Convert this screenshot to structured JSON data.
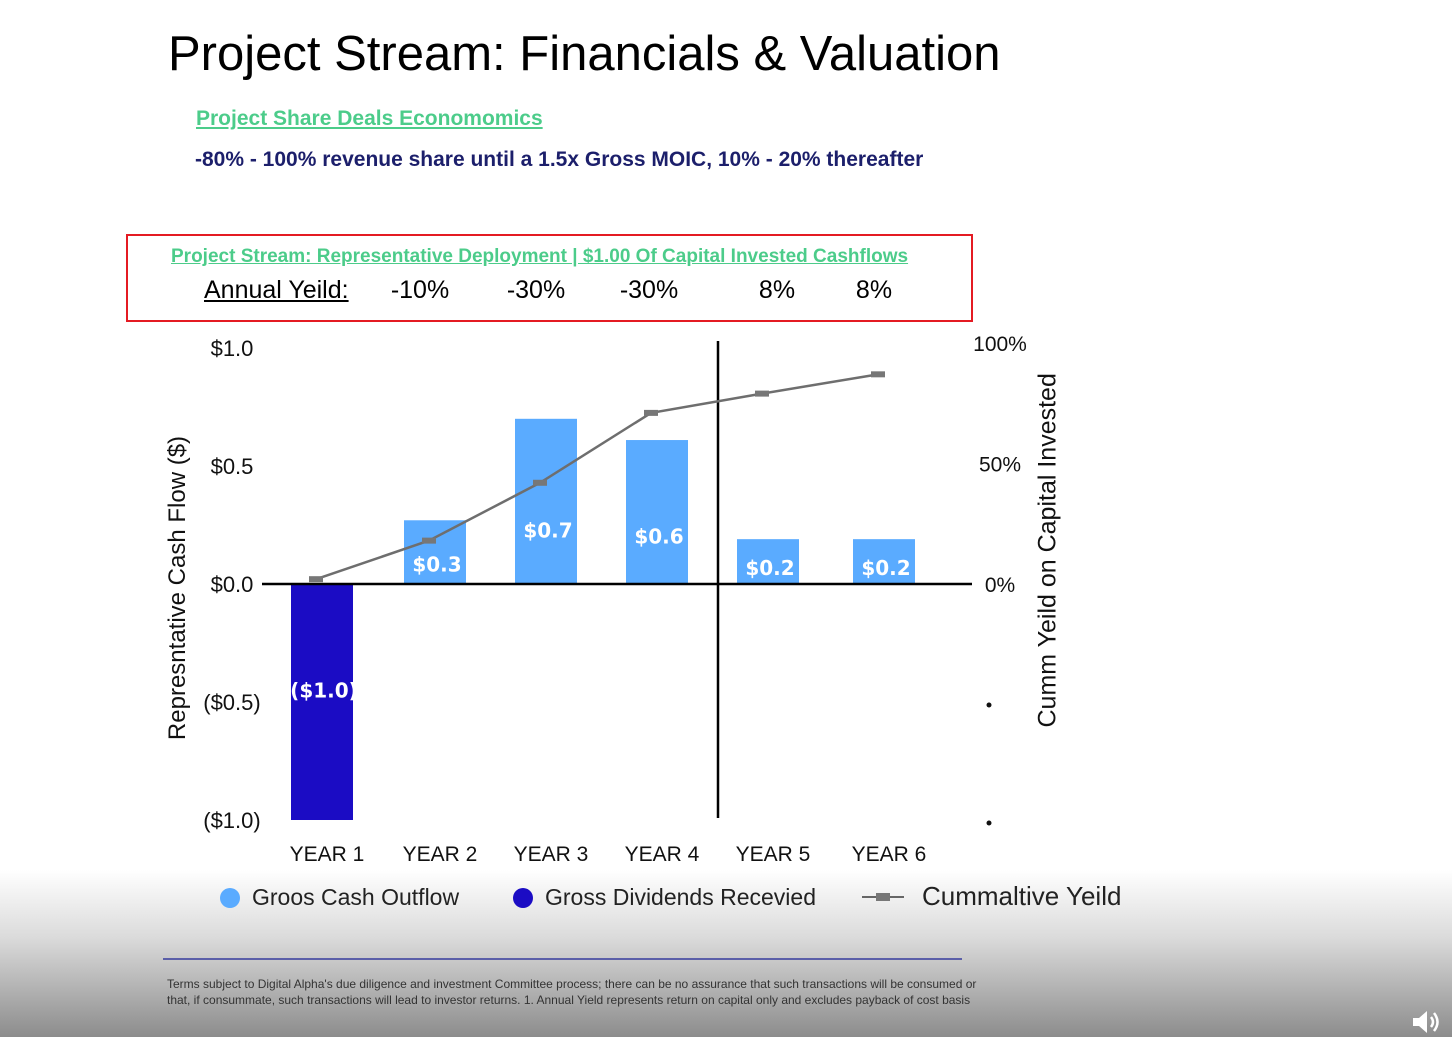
{
  "page": {
    "title": "Project Stream: Financials & Valuation",
    "subhead_link": "Project Share Deals Economomics",
    "subhead_desc": "-80% - 100% revenue share until a 1.5x Gross MOIC, 10% - 20% thereafter",
    "footnote": "Terms subject to Digital Alpha's due diligence and investment Committee process; there can be no assurance that such transactions will be consumed or that, if consummate, such transactions will lead to investor returns. 1. Annual Yield represents return on capital only and excludes payback of cost basis"
  },
  "chart_data": {
    "type": "bar",
    "title": "Project Stream: Representative Deployment | $1.00 Of Capital Invested Cashflows",
    "annual_yield_label": "Annual Yeild:",
    "annual_yields": [
      "-10%",
      "-30%",
      "-30%",
      "8%",
      "8%"
    ],
    "categories": [
      "YEAR 1",
      "YEAR 2",
      "YEAR 3",
      "YEAR 4",
      "YEAR 5",
      "YEAR 6"
    ],
    "series": [
      {
        "name": "Groos Cash Outflow",
        "kind": "bar",
        "color": "#5aabff",
        "values": [
          null,
          0.27,
          0.7,
          0.61,
          0.19,
          0.19
        ],
        "labels": [
          "",
          "$0.3",
          "$0.7",
          "$0.6",
          "$0.2",
          "$0.2"
        ]
      },
      {
        "name": "Gross Dividends Recevied",
        "kind": "bar",
        "color": "#1b0cc4",
        "values": [
          -1.0,
          null,
          null,
          null,
          null,
          null
        ],
        "labels": [
          "($1.0)",
          "",
          "",
          "",
          "",
          ""
        ]
      },
      {
        "name": "Cummaltive Yeild",
        "kind": "line",
        "axis": "right",
        "color": "#6e6e6e",
        "values": [
          2,
          18,
          42,
          71,
          79,
          87
        ]
      }
    ],
    "ylabel": "Represntative Cash Flow ($)",
    "ylim": [
      -1.0,
      1.0
    ],
    "yticks": [
      1.0,
      0.5,
      0.0,
      -0.5,
      -1.0
    ],
    "ytick_labels": [
      "$1.0",
      "$0.5",
      "$0.0",
      "($0.5)",
      "($1.0)"
    ],
    "y2label": "Cumm Yeild on Capital Invested",
    "y2lim": [
      0,
      100
    ],
    "y2ticks": [
      100,
      50,
      0
    ],
    "y2tick_labels": [
      "100%",
      "50%",
      "0%"
    ],
    "grid": false,
    "legend_position": "bottom",
    "annotation_divider_after": "YEAR 4"
  }
}
